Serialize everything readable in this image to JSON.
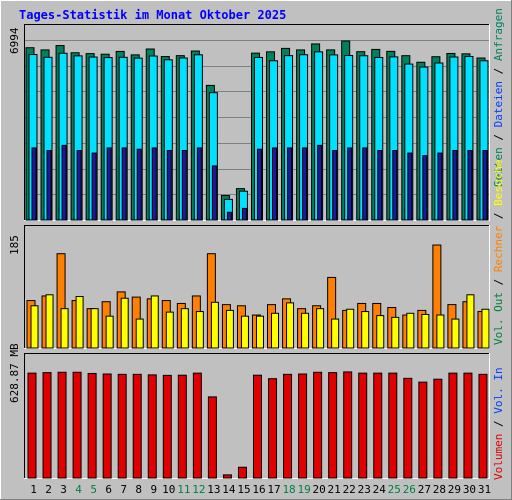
{
  "chart_data": {
    "type": "bar",
    "title": "Tages-Statistik im Monat Oktober 2025",
    "categories": [
      "1",
      "2",
      "3",
      "4",
      "5",
      "6",
      "7",
      "8",
      "9",
      "10",
      "11",
      "12",
      "13",
      "14",
      "15",
      "16",
      "17",
      "18",
      "19",
      "20",
      "21",
      "22",
      "23",
      "24",
      "25",
      "26",
      "27",
      "28",
      "29",
      "30",
      "31"
    ],
    "weekend_days": [
      "4",
      "5",
      "11",
      "12",
      "18",
      "19",
      "25",
      "26"
    ],
    "panels": [
      {
        "id": "top",
        "max_label": "6994",
        "max": 6994,
        "series": [
          {
            "name": "Anfragen",
            "color": "#00805c",
            "values": [
              6694,
              6609,
              6778,
              6499,
              6465,
              6441,
              6550,
              6417,
              6644,
              6351,
              6386,
              6566,
              5230,
              950,
              1220,
              6483,
              6535,
              6668,
              6609,
              6841,
              6610,
              6955,
              6540,
              6628,
              6552,
              6385,
              6129,
              6345,
              6471,
              6457,
              6294
            ]
          },
          {
            "name": "Dateien",
            "color": "#00e0ff",
            "values": [
              6429,
              6321,
              6478,
              6378,
              6331,
              6310,
              6321,
              6289,
              6371,
              6225,
              6294,
              6419,
              4947,
              801,
              1119,
              6316,
              6187,
              6386,
              6422,
              6534,
              6416,
              6390,
              6382,
              6315,
              6338,
              6058,
              5942,
              6100,
              6333,
              6352,
              6187
            ]
          },
          {
            "name": "Seiten",
            "color": "#1a1aa0",
            "values": [
              2800,
              2700,
              2900,
              2700,
              2600,
              2800,
              2800,
              2750,
              2800,
              2700,
              2700,
              2800,
              2100,
              300,
              450,
              2750,
              2800,
              2800,
              2800,
              2900,
              2700,
              2800,
              2800,
              2700,
              2700,
              2600,
              2500,
              2600,
              2700,
              2700,
              2700
            ]
          }
        ]
      },
      {
        "id": "middle",
        "max_label": "185",
        "max": 185,
        "series": [
          {
            "name": "Rechner",
            "color": "#ff8000",
            "values": [
              82,
              90,
              163,
              82,
              68,
              80,
              97,
              88,
              85,
              82,
              77,
              90,
              163,
              75,
              73,
              57,
              75,
              85,
              68,
              73,
              122,
              65,
              77,
              77,
              70,
              57,
              65,
              178,
              75,
              80,
              63
            ]
          },
          {
            "name": "Besuche",
            "color": "#ffff00",
            "values": [
              73,
              92,
              68,
              89,
              68,
              55,
              86,
              50,
              90,
              62,
              68,
              63,
              79,
              65,
              55,
              55,
              60,
              78,
              60,
              68,
              50,
              67,
              63,
              56,
              53,
              60,
              58,
              57,
              50,
              92,
              67
            ]
          }
        ]
      },
      {
        "id": "bottom",
        "max_label": "628.87 MB",
        "max": 628.87,
        "series": [
          {
            "name": "Volumen",
            "color": "#e00000",
            "values": [
              605,
              608,
              610,
              610,
              603,
              600,
              598,
              598,
              595,
              592,
              593,
              605,
              468,
              18,
              62,
              593,
              573,
              598,
              600,
              610,
              608,
              612,
              605,
              605,
              605,
              575,
              553,
              570,
              605,
              605,
              598
            ]
          }
        ]
      }
    ],
    "legend_right": {
      "top": [
        "Anfragen",
        "Dateien",
        "Seiten"
      ],
      "middle": [
        "Besuche",
        "Rechner",
        "Vol. Out"
      ],
      "bottom": [
        "Vol. In",
        "Volumen"
      ]
    }
  },
  "colors": {
    "background": "#c0c0c0",
    "title": "#0000ff",
    "weekday_label": "#000000",
    "weekend_label": "#008040",
    "anfragen": "#00805c",
    "dateien": "#00e0ff",
    "seiten": "#1a1aa0",
    "besuche": "#ffff00",
    "rechner": "#ff8000",
    "vol_out": "#008040",
    "vol_in": "#0040ff",
    "volumen": "#e00000"
  }
}
